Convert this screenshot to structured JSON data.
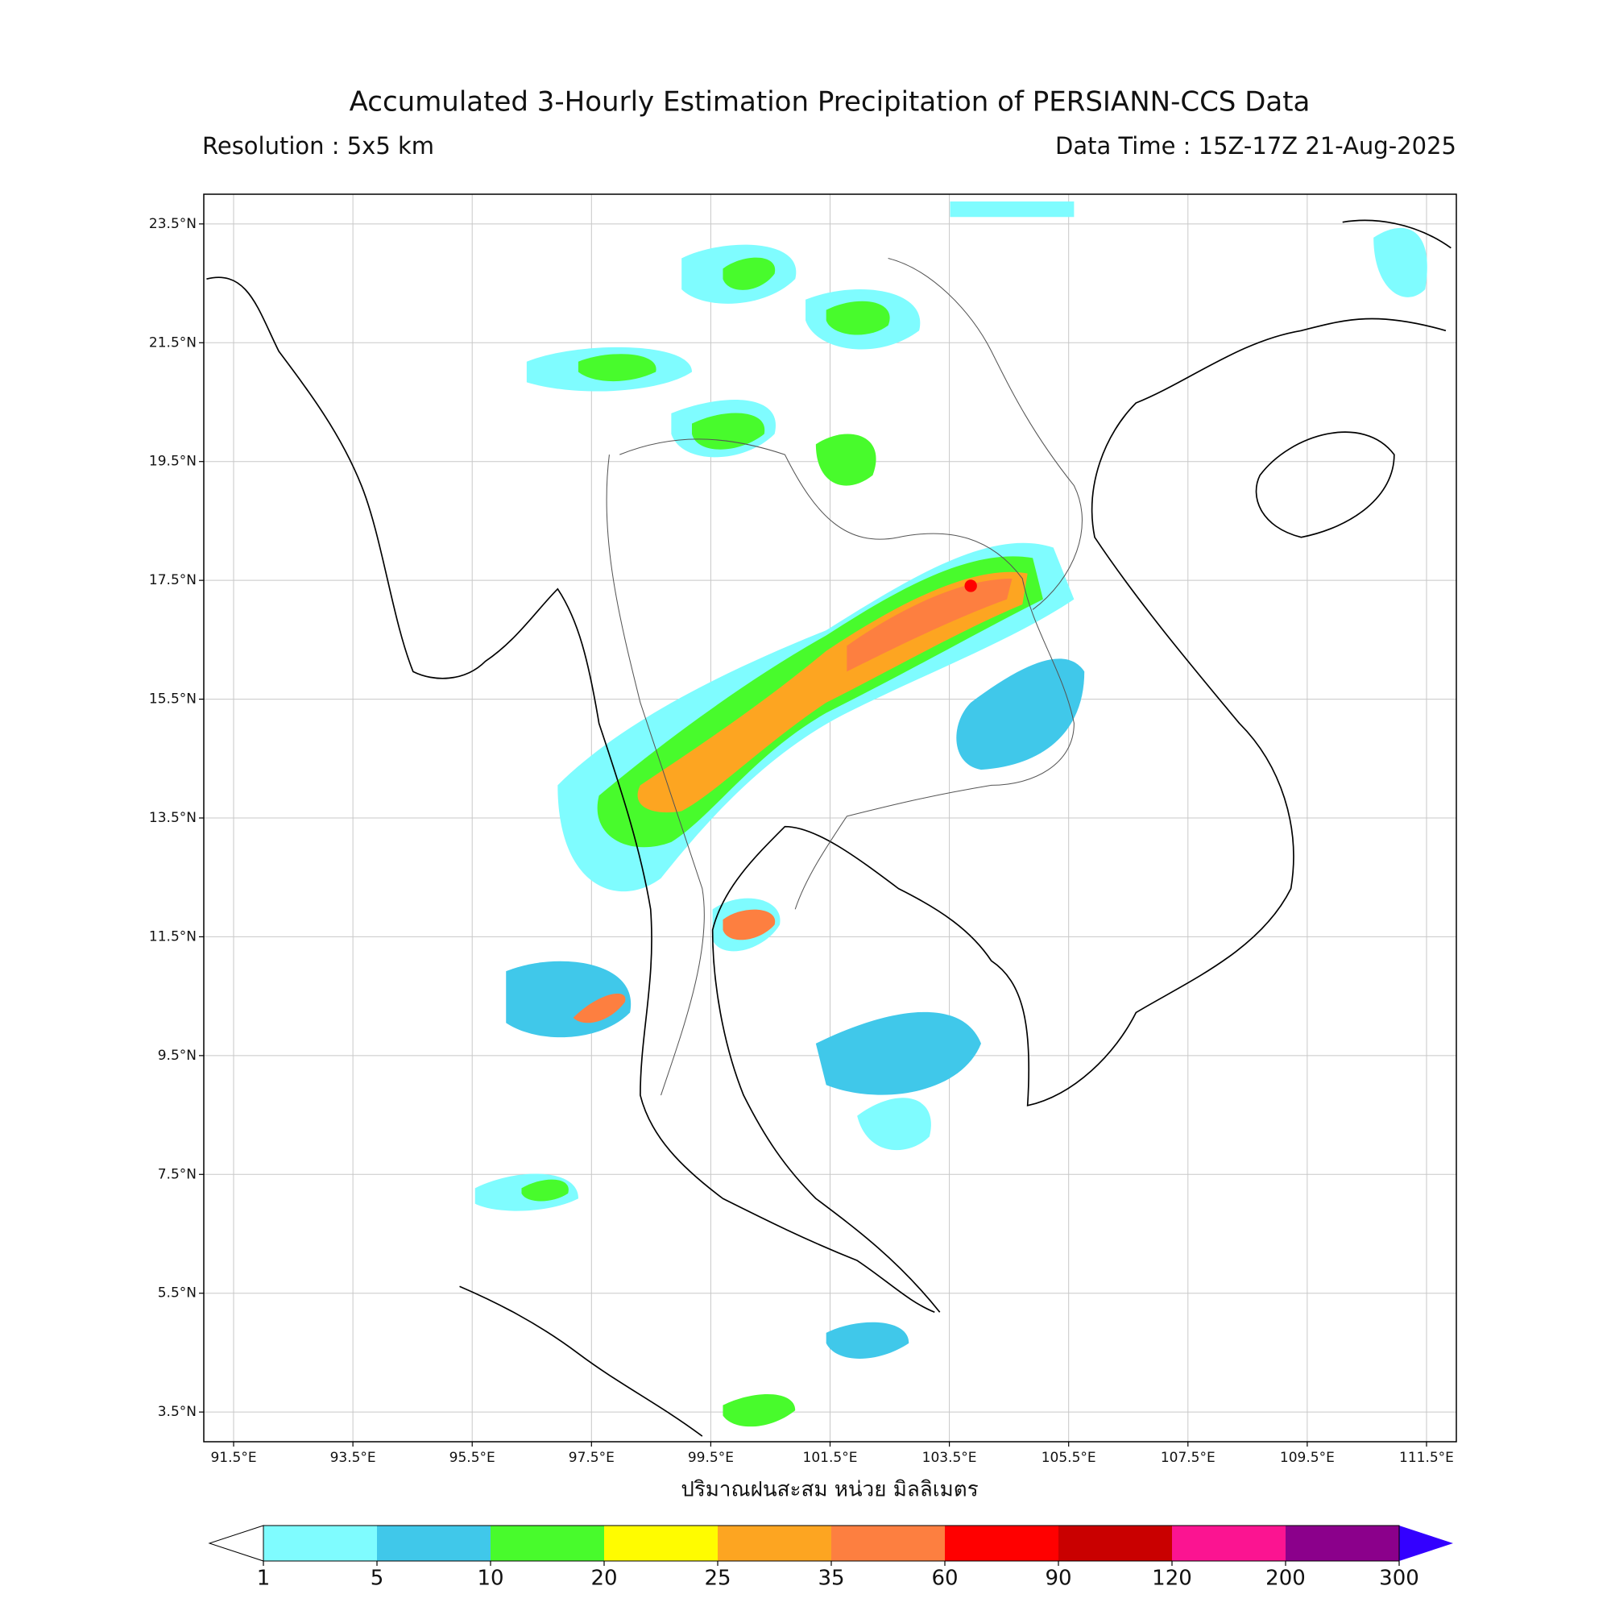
{
  "title": "Accumulated 3-Hourly Estimation Precipitation of PERSIANN-CCS Data",
  "resolution": "Resolution : 5x5 km",
  "data_time": "Data Time : 15Z-17Z 21-Aug-2025",
  "map": {
    "xlim": [
      91,
      112
    ],
    "ylim": [
      3,
      24
    ],
    "grid": true,
    "xticks": [
      {
        "value": 91.5,
        "label": "91.5°E"
      },
      {
        "value": 93.5,
        "label": "93.5°E"
      },
      {
        "value": 95.5,
        "label": "95.5°E"
      },
      {
        "value": 97.5,
        "label": "97.5°E"
      },
      {
        "value": 99.5,
        "label": "99.5°E"
      },
      {
        "value": 101.5,
        "label": "101.5°E"
      },
      {
        "value": 103.5,
        "label": "103.5°E"
      },
      {
        "value": 105.5,
        "label": "105.5°E"
      },
      {
        "value": 107.5,
        "label": "107.5°E"
      },
      {
        "value": 109.5,
        "label": "109.5°E"
      },
      {
        "value": 111.5,
        "label": "111.5°E"
      }
    ],
    "yticks": [
      {
        "value": 3.5,
        "label": "3.5°N"
      },
      {
        "value": 5.5,
        "label": "5.5°N"
      },
      {
        "value": 7.5,
        "label": "7.5°N"
      },
      {
        "value": 9.5,
        "label": "9.5°N"
      },
      {
        "value": 11.5,
        "label": "11.5°N"
      },
      {
        "value": 13.5,
        "label": "13.5°N"
      },
      {
        "value": 15.5,
        "label": "15.5°N"
      },
      {
        "value": 17.5,
        "label": "17.5°N"
      },
      {
        "value": 19.5,
        "label": "19.5°N"
      },
      {
        "value": 21.5,
        "label": "21.5°N"
      },
      {
        "value": 23.5,
        "label": "23.5°N"
      }
    ],
    "xlabel": "ปริมาณฝนสะสม หน่วย มิลลิเมตร"
  },
  "colorbar": {
    "levels": [
      1,
      5,
      10,
      20,
      25,
      35,
      60,
      90,
      120,
      200,
      300
    ],
    "colors": [
      "#7ffcff",
      "#40c8ea",
      "#48fb2c",
      "#fffc00",
      "#fda521",
      "#fd7f40",
      "#ff0000",
      "#c90000",
      "#fb1491",
      "#8b008b"
    ],
    "under_color": "#ffffff",
    "over_color": "#3300ff"
  }
}
